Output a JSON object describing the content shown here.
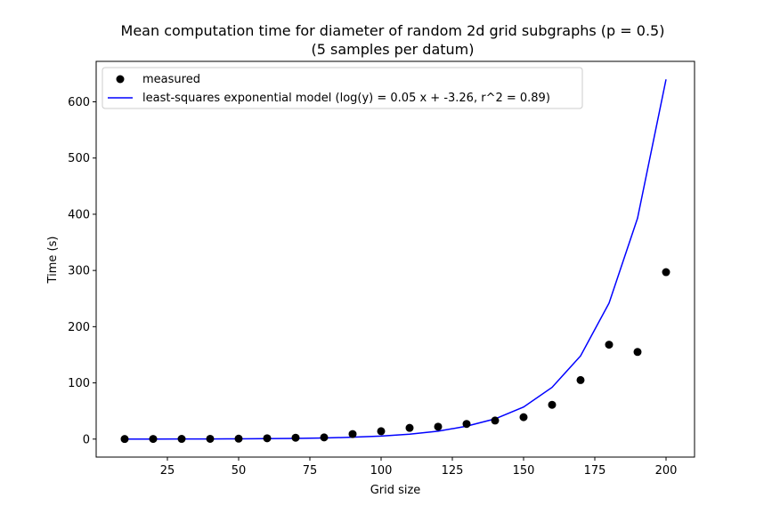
{
  "chart_data": {
    "type": "scatter",
    "title": "Mean computation time for diameter of random 2d grid subgraphs (p = 0.5)",
    "subtitle": "(5 samples per datum)",
    "xlabel": "Grid size",
    "ylabel": "Time (s)",
    "xlim": [
      0,
      210
    ],
    "ylim": [
      -32,
      672
    ],
    "xticks": [
      25,
      50,
      75,
      100,
      125,
      150,
      175,
      200
    ],
    "yticks": [
      0,
      100,
      200,
      300,
      400,
      500,
      600
    ],
    "grid": false,
    "legend_position": "upper-left",
    "series": [
      {
        "name": "measured",
        "kind": "scatter",
        "color": "#000000",
        "x": [
          10,
          20,
          30,
          40,
          50,
          60,
          70,
          80,
          90,
          100,
          110,
          120,
          130,
          140,
          150,
          160,
          170,
          180,
          190,
          200
        ],
        "y": [
          0.2,
          0.3,
          0.4,
          0.5,
          0.8,
          1.5,
          2.5,
          3,
          9,
          14,
          20,
          22,
          27,
          33,
          39,
          61,
          105,
          168,
          155,
          297
        ]
      },
      {
        "name": "least-squares exponential model (log(y) = 0.05 x + -3.26, r^2 = 0.89)",
        "kind": "line",
        "color": "#0000ff",
        "x": [
          10,
          20,
          30,
          40,
          50,
          60,
          70,
          80,
          90,
          100,
          110,
          120,
          130,
          140,
          150,
          160,
          170,
          180,
          190,
          200
        ],
        "y": [
          0.06,
          0.1,
          0.17,
          0.28,
          0.46,
          0.75,
          1.2,
          2.0,
          3.3,
          5.3,
          8.7,
          14,
          23,
          36,
          57,
          92,
          148,
          242,
          393,
          640
        ]
      }
    ]
  }
}
